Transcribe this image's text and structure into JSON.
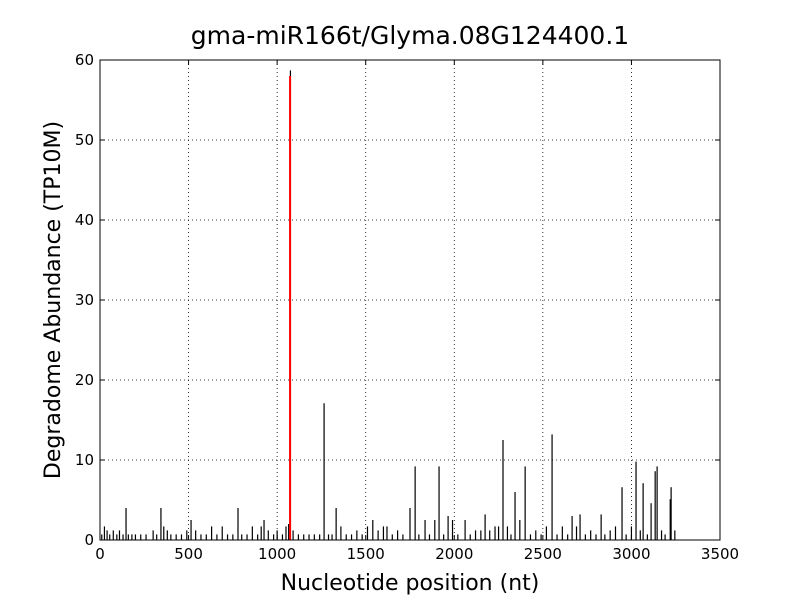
{
  "chart_data": {
    "type": "stem",
    "title": "gma-miR166t/Glyma.08G124400.1",
    "xlabel": "Nucleotide position (nt)",
    "ylabel": "Degradome Abundance (TP10M)",
    "xlim": [
      0,
      3500
    ],
    "xticks": [
      0,
      500,
      1000,
      1500,
      2000,
      2500,
      3000,
      3500
    ],
    "ylim": [
      0,
      60
    ],
    "yticks": [
      0,
      10,
      20,
      30,
      40,
      50,
      60
    ],
    "grid": true,
    "series": [
      {
        "color": "#000000",
        "x": [
          10,
          25,
          40,
          55,
          75,
          95,
          110,
          130,
          147,
          160,
          180,
          200,
          230,
          260,
          300,
          320,
          344,
          360,
          380,
          400,
          430,
          460,
          490,
          514,
          540,
          570,
          600,
          630,
          660,
          690,
          720,
          750,
          779,
          800,
          830,
          860,
          890,
          910,
          926,
          950,
          980,
          1000,
          1030,
          1050,
          1065,
          1075,
          1090,
          1120,
          1150,
          1180,
          1210,
          1240,
          1265,
          1290,
          1310,
          1333,
          1360,
          1390,
          1420,
          1450,
          1480,
          1510,
          1540,
          1570,
          1600,
          1620,
          1650,
          1680,
          1710,
          1750,
          1779,
          1800,
          1835,
          1860,
          1890,
          1914,
          1940,
          1965,
          1990,
          2020,
          2061,
          2090,
          2120,
          2150,
          2174,
          2200,
          2230,
          2250,
          2275,
          2300,
          2320,
          2343,
          2370,
          2400,
          2430,
          2460,
          2490,
          2520,
          2552,
          2580,
          2610,
          2640,
          2665,
          2690,
          2710,
          2740,
          2770,
          2800,
          2829,
          2850,
          2880,
          2910,
          2947,
          2970,
          3000,
          3026,
          3050,
          3066,
          3090,
          3111,
          3134,
          3145,
          3170,
          3190,
          3219,
          3224,
          3245
        ],
        "values": [
          0.7,
          1.7,
          1.2,
          0.7,
          1.2,
          0.7,
          1.2,
          0.7,
          4,
          0.7,
          0.7,
          0.7,
          0.7,
          0.7,
          1.2,
          0.7,
          4,
          1.7,
          1.2,
          0.7,
          0.7,
          0.7,
          1.2,
          2.5,
          1.2,
          0.7,
          0.7,
          1.7,
          0.7,
          1.7,
          0.7,
          0.7,
          4,
          0.7,
          0.7,
          1.7,
          0.7,
          1.7,
          2.5,
          1.2,
          0.7,
          1.2,
          0.7,
          1.7,
          2,
          58.7,
          1.2,
          0.7,
          0.7,
          0.7,
          0.7,
          0.7,
          17.1,
          0.7,
          0.7,
          4,
          1.7,
          0.7,
          0.7,
          1.2,
          0.7,
          1.7,
          2.5,
          1.2,
          1.7,
          1.7,
          0.7,
          1.2,
          0.7,
          4,
          9.2,
          0.7,
          2.5,
          0.7,
          2.5,
          9.2,
          0.7,
          3,
          2.5,
          0.7,
          2.5,
          0.7,
          1.2,
          1.2,
          3.2,
          1.2,
          1.7,
          1.7,
          12.5,
          1.7,
          0.7,
          6,
          2.5,
          9.2,
          0.7,
          1.2,
          0.7,
          1.7,
          13.2,
          0.7,
          1.7,
          0.7,
          3,
          1.7,
          3.2,
          0.7,
          1.2,
          0.7,
          3.2,
          0.7,
          1.2,
          1.7,
          6.6,
          0.7,
          1.7,
          9.8,
          1.2,
          7.1,
          0.7,
          4.6,
          8.6,
          9.2,
          1.2,
          0.7,
          5.1,
          6.6,
          1.2
        ]
      },
      {
        "color": "#ff0000",
        "x": [
          1073
        ],
        "values": [
          58
        ]
      }
    ]
  }
}
